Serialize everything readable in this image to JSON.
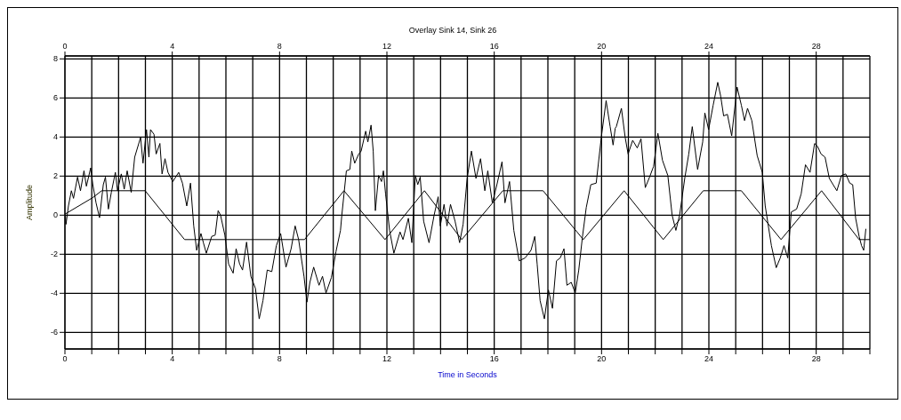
{
  "chart_data": {
    "type": "line",
    "title": "Overlay Sink 14, Sink 26",
    "xlabel": "Time in Seconds",
    "ylabel": "Amplitude",
    "xlim": [
      0,
      30
    ],
    "ylim": [
      -6.85,
      8.15
    ],
    "x2lim": [
      0,
      30
    ],
    "xticks": [
      0,
      {
        "value": 1,
        "label": null
      },
      {
        "value": 2,
        "label": null
      },
      {
        "value": 3,
        "label": null
      },
      4,
      {
        "value": 5,
        "label": null
      },
      {
        "value": 6,
        "label": null
      },
      {
        "value": 7,
        "label": null
      },
      8,
      {
        "value": 9,
        "label": null
      },
      {
        "value": 10,
        "label": null
      },
      {
        "value": 11,
        "label": null
      },
      12,
      {
        "value": 13,
        "label": null
      },
      {
        "value": 14,
        "label": null
      },
      {
        "value": 15,
        "label": null
      },
      16,
      {
        "value": 17,
        "label": null
      },
      {
        "value": 18,
        "label": null
      },
      {
        "value": 19,
        "label": null
      },
      20,
      {
        "value": 21,
        "label": null
      },
      {
        "value": 22,
        "label": null
      },
      {
        "value": 23,
        "label": null
      },
      24,
      {
        "value": 25,
        "label": null
      },
      {
        "value": 26,
        "label": null
      },
      {
        "value": 27,
        "label": null
      },
      28,
      {
        "value": 29,
        "label": null
      },
      {
        "value": 30,
        "label": null
      }
    ],
    "x2ticks": [
      0,
      4,
      8,
      12,
      16,
      20,
      24,
      28
    ],
    "yticks": [
      -6,
      -4,
      -2,
      0,
      2,
      4,
      6,
      8
    ],
    "grid": true,
    "legend": false,
    "marker": "none",
    "line_style": "solid",
    "series": [
      {
        "color": "#000000",
        "x": [
          0.02,
          0.04,
          0.13,
          0.24,
          0.32,
          0.47,
          0.58,
          0.71,
          0.8,
          0.96,
          1.04,
          1.16,
          1.29,
          1.43,
          1.51,
          1.62,
          1.73,
          1.88,
          1.96,
          2.1,
          2.21,
          2.32,
          2.47,
          2.6,
          2.82,
          2.91,
          3.04,
          3.13,
          3.19,
          3.32,
          3.4,
          3.54,
          3.62,
          3.73,
          3.84,
          4.02,
          4.24,
          4.38,
          4.54,
          4.68,
          4.8,
          4.91,
          5.07,
          5.16,
          5.27,
          5.47,
          5.6,
          5.71,
          5.8,
          5.96,
          6.1,
          6.27,
          6.38,
          6.51,
          6.62,
          6.77,
          6.93,
          7.1,
          7.24,
          7.38,
          7.54,
          7.71,
          7.88,
          8.04,
          8.24,
          8.43,
          8.58,
          8.71,
          8.91,
          9.02,
          9.13,
          9.27,
          9.47,
          9.6,
          9.73,
          9.93,
          10.1,
          10.27,
          10.32,
          10.49,
          10.62,
          10.69,
          10.8,
          10.95,
          11.04,
          11.21,
          11.29,
          11.41,
          11.49,
          11.57,
          11.69,
          11.8,
          11.87,
          11.95,
          12.1,
          12.26,
          12.49,
          12.6,
          12.8,
          12.93,
          13.06,
          13.15,
          13.24,
          13.37,
          13.57,
          13.76,
          13.91,
          13.99,
          14.13,
          14.24,
          14.37,
          14.54,
          14.71,
          14.84,
          14.99,
          15.15,
          15.32,
          15.49,
          15.65,
          15.76,
          15.93,
          16.1,
          16.29,
          16.4,
          16.57,
          16.73,
          16.93,
          17.15,
          17.37,
          17.51,
          17.6,
          17.71,
          17.87,
          18.02,
          18.17,
          18.32,
          18.46,
          18.6,
          18.71,
          18.87,
          19.02,
          19.15,
          19.29,
          19.43,
          19.6,
          19.8,
          19.99,
          20.17,
          20.32,
          20.43,
          20.51,
          20.55,
          20.74,
          20.88,
          20.99,
          21.16,
          21.33,
          21.47,
          21.63,
          21.77,
          21.94,
          22.1,
          22.27,
          22.47,
          22.63,
          22.77,
          22.91,
          23.1,
          23.25,
          23.38,
          23.58,
          23.77,
          23.85,
          23.99,
          24.16,
          24.33,
          24.44,
          24.55,
          24.69,
          24.85,
          25.05,
          25.21,
          25.33,
          25.44,
          25.6,
          25.8,
          25.99,
          26.1,
          26.33,
          26.51,
          26.66,
          26.8,
          26.94,
          27.07,
          27.27,
          27.44,
          27.6,
          27.77,
          27.94,
          28.05,
          28.18,
          28.33,
          28.49,
          28.63,
          28.77,
          28.94,
          29.1,
          29.25,
          29.36,
          29.47,
          29.6,
          29.69,
          29.77,
          29.85
        ],
        "values": [
          0,
          -0.47,
          0.47,
          1.25,
          0.86,
          1.95,
          1.25,
          2.27,
          1.48,
          2.42,
          1.56,
          0.63,
          -0.13,
          1.56,
          1.95,
          0.31,
          1.17,
          2.19,
          1.25,
          2.11,
          1.33,
          2.27,
          1.17,
          2.97,
          3.98,
          2.66,
          4.38,
          2.97,
          4.38,
          4.14,
          3.13,
          3.67,
          2.11,
          2.89,
          2.19,
          1.72,
          2.19,
          1.64,
          0.47,
          1.64,
          -0.55,
          -1.8,
          -0.94,
          -1.41,
          -1.95,
          -1.09,
          -1.02,
          0.23,
          0,
          -1.02,
          -2.5,
          -2.97,
          -1.72,
          -2.5,
          -2.81,
          -1.38,
          -3.13,
          -3.75,
          -5.31,
          -4.38,
          -2.81,
          -2.89,
          -1.56,
          -0.94,
          -2.66,
          -1.72,
          -0.55,
          -1.25,
          -3.13,
          -4.45,
          -3.44,
          -2.66,
          -3.59,
          -3.13,
          -3.98,
          -3.2,
          -1.88,
          -0.78,
          0,
          2.27,
          2.34,
          3.28,
          2.66,
          3.13,
          3.28,
          4.3,
          3.75,
          4.61,
          3.28,
          0.23,
          2.03,
          1.72,
          2.27,
          1.09,
          -0.78,
          -1.95,
          -0.86,
          -1.25,
          -0.16,
          -1.41,
          2.03,
          1.56,
          1.95,
          -0.31,
          -1.41,
          0,
          0.94,
          -0.55,
          0.55,
          -0.55,
          0.55,
          -0.31,
          -1.41,
          -0.47,
          1.88,
          3.28,
          1.88,
          2.89,
          1.25,
          2.27,
          0.63,
          1.56,
          2.73,
          0.63,
          1.72,
          -0.78,
          -2.34,
          -2.19,
          -1.8,
          -1.09,
          -2.5,
          -4.38,
          -5.31,
          -3.83,
          -4.77,
          -2.34,
          -2.19,
          -1.72,
          -3.59,
          -3.44,
          -3.98,
          -2.81,
          -1.09,
          0.39,
          1.56,
          1.64,
          3.98,
          5.86,
          4.53,
          3.59,
          4.45,
          4.53,
          5.47,
          3.98,
          3.13,
          3.83,
          3.44,
          3.91,
          1.41,
          1.88,
          2.5,
          4.19,
          2.81,
          2.03,
          0,
          -0.78,
          0,
          1.88,
          3.13,
          4.53,
          2.34,
          3.75,
          5.23,
          4.38,
          5.63,
          6.8,
          6.09,
          5.08,
          5.16,
          4.06,
          6.56,
          5.63,
          4.84,
          5.47,
          4.84,
          3.05,
          2.19,
          0.47,
          -1.56,
          -2.69,
          -2.19,
          -1.56,
          -2.19,
          0.16,
          0.31,
          1.09,
          2.58,
          2.19,
          3.67,
          3.52,
          3.13,
          2.97,
          1.88,
          1.56,
          1.25,
          2.03,
          2.11,
          1.64,
          1.56,
          -0.16,
          -1.09,
          -1.56,
          -1.8,
          -0.7
        ]
      },
      {
        "color": "#000000",
        "x": [
          0,
          1.04,
          1.37,
          2.99,
          4.46,
          8.93,
          10.4,
          11.93,
          13.4,
          14.79,
          16.32,
          17.82,
          19.32,
          20.84,
          22.3,
          23.79,
          25.21,
          26.69,
          28.2,
          29.6,
          30
        ],
        "values": [
          0.05,
          0.9,
          1.25,
          1.25,
          -1.25,
          -1.25,
          1.25,
          -1.25,
          1.25,
          -1.25,
          1.25,
          1.25,
          -1.25,
          1.25,
          -1.25,
          1.25,
          1.25,
          -1.25,
          1.25,
          -1.25,
          -1.25
        ]
      }
    ]
  }
}
